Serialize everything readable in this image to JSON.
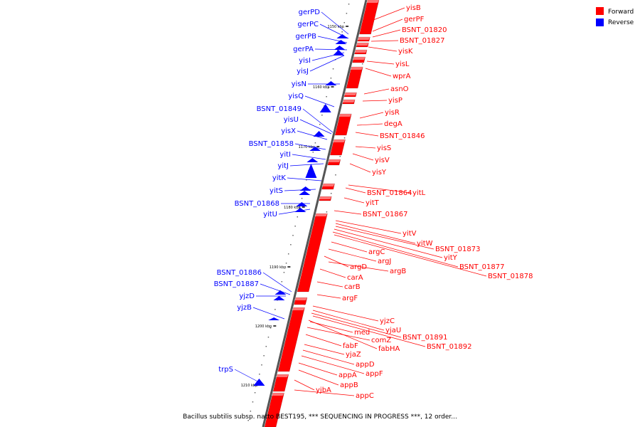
{
  "title": "Bacillus subtilis subsp. natto BEST195, *** SEQUENCING IN PROGRESS ***, 12 order...",
  "legend": [
    {
      "label": "Forward",
      "color": "#ff0000"
    },
    {
      "label": "Reverse",
      "color": "#0000ff"
    }
  ],
  "axis": {
    "ticks": [
      "1150 kbp",
      "1160 kbp",
      "1170 kbp",
      "1180 kbp",
      "1190 kbp",
      "1200 kbp",
      "1210 kbp"
    ]
  },
  "reverse_genes": [
    "gerPD",
    "gerPC",
    "gerPB",
    "gerPA",
    "yisI",
    "yisJ",
    "yisN",
    "yisQ",
    "BSNT_01849",
    "yisU",
    "yisX",
    "BSNT_01858",
    "yitI",
    "yitJ",
    "yitK",
    "yitS",
    "BSNT_01868",
    "yitU",
    "BSNT_01886",
    "BSNT_01887",
    "yjzD",
    "yjzB",
    "trpS"
  ],
  "forward_genes": [
    "yisB",
    "gerPF",
    "BSNT_01820",
    "BSNT_01827",
    "yisK",
    "yisL",
    "wprA",
    "asnO",
    "yisP",
    "yisR",
    "degA",
    "BSNT_01846",
    "yisS",
    "yisV",
    "yisY",
    "BSNT_01864",
    "yitL",
    "yitT",
    "BSNT_01867",
    "yitV",
    "yitW",
    "BSNT_01873",
    "argC",
    "yitY",
    "argJ",
    "BSNT_01877",
    "argD",
    "argB",
    "BSNT_01878",
    "carA",
    "carB",
    "argF",
    "yjzC",
    "yjaU",
    "med",
    "BSNT_01891",
    "comZ",
    "fabF",
    "fabHA",
    "BSNT_01892",
    "yjaZ",
    "appD",
    "appF",
    "appA",
    "appB",
    "yjbA",
    "appC"
  ]
}
